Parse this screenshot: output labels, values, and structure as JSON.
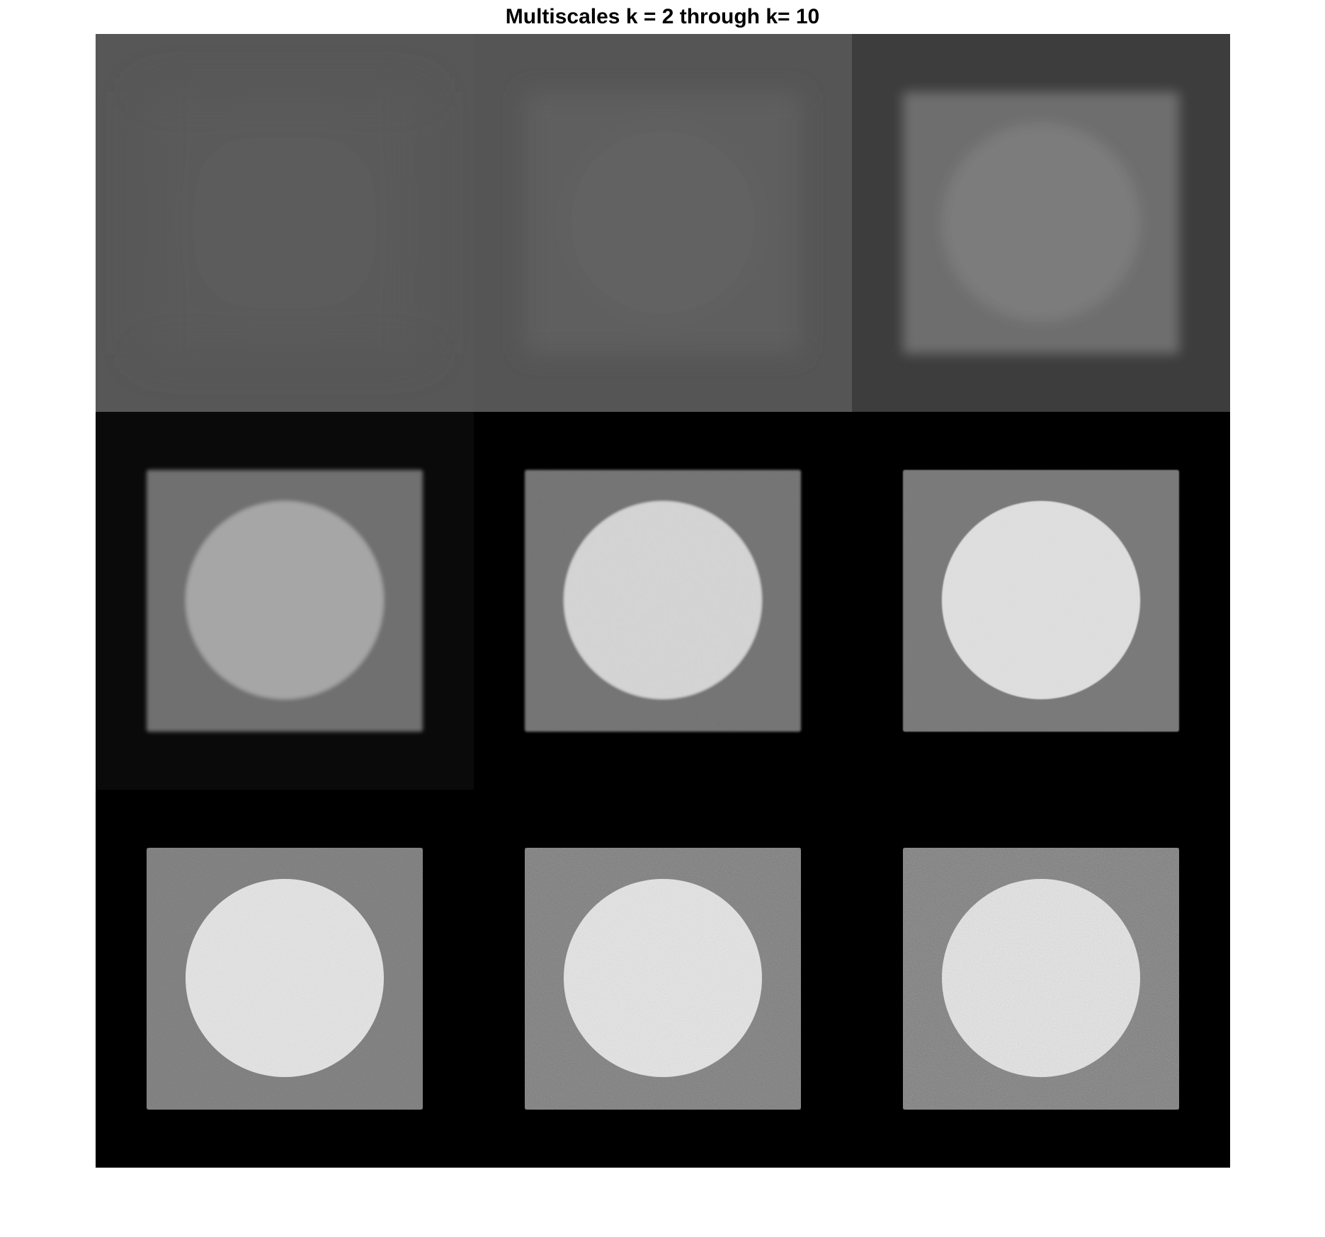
{
  "figure": {
    "title": "Multiscales k = 2 through k= 10"
  },
  "montage": {
    "rows": 3,
    "columns": 3,
    "tiles": [
      {
        "k": 2,
        "tile_gray": "#575757",
        "square_gray": "#5a5a5a",
        "disk_gray": "#5c5c5c",
        "blur": 30,
        "noise": 0.0
      },
      {
        "k": 3,
        "tile_gray": "#555555",
        "square_gray": "#5e5e5e",
        "disk_gray": "#626262",
        "blur": 16,
        "noise": 0.0
      },
      {
        "k": 4,
        "tile_gray": "#3d3d3d",
        "square_gray": "#6e6e6e",
        "disk_gray": "#7b7b7b",
        "blur": 8,
        "noise": 0.0
      },
      {
        "k": 5,
        "tile_gray": "#0a0a0a",
        "square_gray": "#6f6f6f",
        "disk_gray": "#a6a6a6",
        "blur": 3,
        "noise": 0.02
      },
      {
        "k": 6,
        "tile_gray": "#000000",
        "square_gray": "#727272",
        "disk_gray": "#d4d4d4",
        "blur": 1.5,
        "noise": 0.05
      },
      {
        "k": 7,
        "tile_gray": "#000000",
        "square_gray": "#767676",
        "disk_gray": "#e0e0e0",
        "blur": 0.8,
        "noise": 0.12
      },
      {
        "k": 8,
        "tile_gray": "#000000",
        "square_gray": "#787878",
        "disk_gray": "#e6e6e6",
        "blur": 0,
        "noise": 0.28
      },
      {
        "k": 9,
        "tile_gray": "#000000",
        "square_gray": "#7a7a7a",
        "disk_gray": "#e8e8e8",
        "blur": 0,
        "noise": 0.38
      },
      {
        "k": 10,
        "tile_gray": "#000000",
        "square_gray": "#7a7a7a",
        "disk_gray": "#e8e8e8",
        "blur": 0,
        "noise": 0.45
      }
    ]
  }
}
